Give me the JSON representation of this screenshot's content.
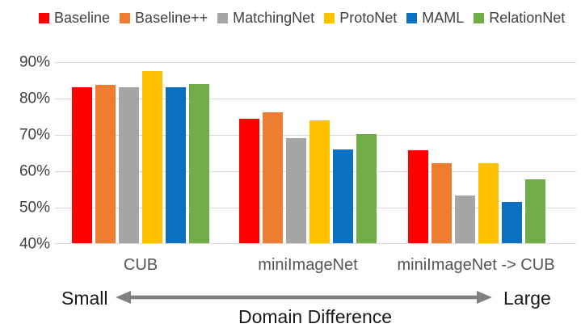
{
  "chart_data": {
    "type": "bar",
    "title": "",
    "categories": [
      "CUB",
      "miniImageNet",
      "miniImageNet -> CUB"
    ],
    "series": [
      {
        "name": "Baseline",
        "color": "#fe0000",
        "values": [
          82.9,
          74.3,
          65.6
        ]
      },
      {
        "name": "Baseline++",
        "color": "#ed7d31",
        "values": [
          83.6,
          75.9,
          62.0
        ]
      },
      {
        "name": "MatchingNet",
        "color": "#a5a5a5",
        "values": [
          82.9,
          69.0,
          53.1
        ]
      },
      {
        "name": "ProtoNet",
        "color": "#ffc000",
        "values": [
          87.4,
          73.8,
          62.0
        ]
      },
      {
        "name": "MAML",
        "color": "#0c70c0",
        "values": [
          82.9,
          65.7,
          51.3
        ]
      },
      {
        "name": "RelationNet",
        "color": "#70ad47",
        "values": [
          83.7,
          70.0,
          57.6
        ]
      }
    ],
    "y_axis": {
      "min": 40,
      "max": 90,
      "tick_step": 10,
      "tick_labels": [
        "90%",
        "80%",
        "70%",
        "60%",
        "50%",
        "40%"
      ],
      "unit": "%"
    },
    "grid": true,
    "legend_position": "top",
    "gridline_color": "#d9d9d9"
  },
  "annotation": {
    "left_label": "Small",
    "right_label": "Large",
    "axis_label": "Domain  Difference",
    "arrow_color": "#7f7f7f"
  }
}
